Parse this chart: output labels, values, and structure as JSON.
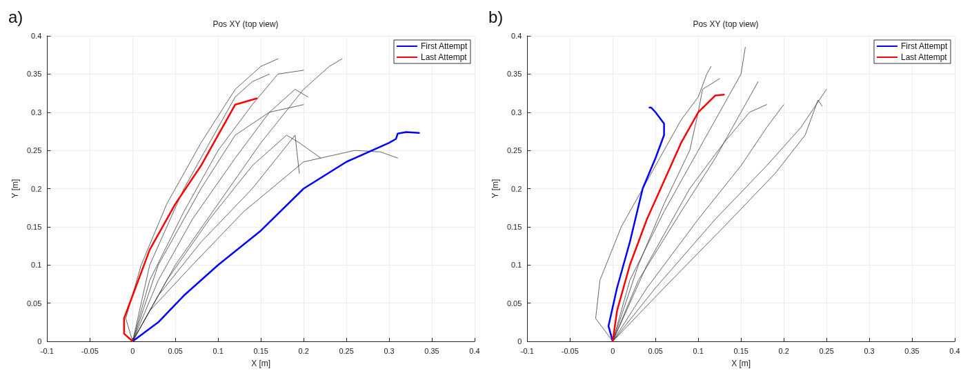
{
  "chart_data": [
    {
      "type": "line",
      "title": "Pos XY (top view)",
      "xlabel": "X [m]",
      "ylabel": "Y [m]",
      "annotations": [
        "a)"
      ],
      "xlim": [
        -0.1,
        0.4
      ],
      "xticks": [
        -0.1,
        -0.05,
        0,
        0.05,
        0.1,
        0.15,
        0.2,
        0.25,
        0.3,
        0.35,
        0.4
      ],
      "ylim": [
        0,
        0.4
      ],
      "yticks": [
        0,
        0.05,
        0.1,
        0.15,
        0.2,
        0.25,
        0.3,
        0.35,
        0.4
      ],
      "grid": true,
      "legend": "top right",
      "marker": "none",
      "line_style": "solid",
      "series": [
        {
          "color": "#333333",
          "x": [
            0,
            -0.008,
            0.01,
            0.04,
            0.08,
            0.12,
            0.15,
            0.17
          ],
          "values": [
            0,
            0.03,
            0.1,
            0.18,
            0.26,
            0.33,
            0.36,
            0.37
          ]
        },
        {
          "color": "#333333",
          "x": [
            0,
            0.02,
            0.06,
            0.1,
            0.14,
            0.17,
            0.2
          ],
          "values": [
            0,
            0.08,
            0.17,
            0.25,
            0.31,
            0.35,
            0.355
          ]
        },
        {
          "color": "#333333",
          "x": [
            0,
            0.03,
            0.07,
            0.12,
            0.16,
            0.19,
            0.205
          ],
          "values": [
            0,
            0.08,
            0.16,
            0.24,
            0.3,
            0.33,
            0.32
          ]
        },
        {
          "color": "#333333",
          "x": [
            0,
            0.04,
            0.09,
            0.14,
            0.18,
            0.195,
            0.22
          ],
          "values": [
            0,
            0.08,
            0.16,
            0.23,
            0.27,
            0.26,
            0.24
          ]
        },
        {
          "color": "#333333",
          "x": [
            0,
            0.02,
            0.07,
            0.13,
            0.2,
            0.26,
            0.29,
            0.31
          ],
          "values": [
            0,
            0.04,
            0.1,
            0.17,
            0.235,
            0.25,
            0.248,
            0.24
          ]
        },
        {
          "color": "#333333",
          "x": [
            0,
            0.03,
            0.08,
            0.14,
            0.19,
            0.195
          ],
          "values": [
            0,
            0.06,
            0.13,
            0.2,
            0.27,
            0.22
          ]
        },
        {
          "color": "#333333",
          "x": [
            0,
            0.05,
            0.1,
            0.15,
            0.2,
            0.23,
            0.245
          ],
          "values": [
            0,
            0.1,
            0.18,
            0.26,
            0.33,
            0.36,
            0.37
          ]
        },
        {
          "color": "#333333",
          "x": [
            0,
            0.02,
            0.06,
            0.1,
            0.12,
            0.14,
            0.16
          ],
          "values": [
            0,
            0.1,
            0.2,
            0.28,
            0.32,
            0.34,
            0.35
          ]
        },
        {
          "color": "#333333",
          "x": [
            0,
            0.03,
            0.08,
            0.12,
            0.16,
            0.2
          ],
          "values": [
            0,
            0.1,
            0.2,
            0.27,
            0.3,
            0.31
          ]
        },
        {
          "name": "First Attempt",
          "color": "#0000ff",
          "x": [
            0,
            0.03,
            0.06,
            0.1,
            0.15,
            0.2,
            0.25,
            0.3,
            0.308,
            0.31,
            0.32,
            0.335
          ],
          "values": [
            0,
            0.025,
            0.06,
            0.1,
            0.145,
            0.2,
            0.235,
            0.26,
            0.265,
            0.272,
            0.274,
            0.273
          ]
        },
        {
          "name": "Last Attempt",
          "color": "#ff0000",
          "x": [
            0,
            -0.01,
            -0.01,
            0,
            0.02,
            0.05,
            0.08,
            0.1,
            0.11,
            0.12,
            0.145
          ],
          "values": [
            0,
            0.01,
            0.03,
            0.06,
            0.12,
            0.18,
            0.23,
            0.27,
            0.29,
            0.31,
            0.318
          ]
        }
      ]
    },
    {
      "type": "line",
      "title": "Pos XY (top view)",
      "xlabel": "X [m]",
      "ylabel": "Y [m]",
      "annotations": [
        "b)"
      ],
      "xlim": [
        -0.1,
        0.4
      ],
      "xticks": [
        -0.1,
        -0.05,
        0,
        0.05,
        0.1,
        0.15,
        0.2,
        0.25,
        0.3,
        0.35,
        0.4
      ],
      "ylim": [
        0,
        0.4
      ],
      "yticks": [
        0,
        0.05,
        0.1,
        0.15,
        0.2,
        0.25,
        0.3,
        0.35,
        0.4
      ],
      "grid": true,
      "legend": "top right",
      "marker": "none",
      "line_style": "solid",
      "series": [
        {
          "color": "#333333",
          "x": [
            0,
            -0.02,
            -0.015,
            0.01,
            0.05,
            0.08,
            0.1,
            0.11,
            0.115
          ],
          "values": [
            0,
            0.03,
            0.08,
            0.15,
            0.23,
            0.29,
            0.32,
            0.35,
            0.36
          ]
        },
        {
          "color": "#333333",
          "x": [
            0,
            0.02,
            0.06,
            0.1,
            0.13,
            0.15,
            0.155
          ],
          "values": [
            0,
            0.08,
            0.17,
            0.25,
            0.31,
            0.35,
            0.385
          ]
        },
        {
          "color": "#333333",
          "x": [
            0,
            0.03,
            0.08,
            0.12,
            0.15,
            0.17
          ],
          "values": [
            0,
            0.08,
            0.17,
            0.24,
            0.3,
            0.34
          ]
        },
        {
          "color": "#333333",
          "x": [
            0,
            0.04,
            0.1,
            0.15,
            0.18,
            0.2
          ],
          "values": [
            0,
            0.07,
            0.16,
            0.23,
            0.28,
            0.31
          ]
        },
        {
          "color": "#333333",
          "x": [
            0,
            0.05,
            0.12,
            0.18,
            0.22,
            0.25
          ],
          "values": [
            0,
            0.07,
            0.16,
            0.23,
            0.28,
            0.33
          ]
        },
        {
          "color": "#333333",
          "x": [
            0,
            0.06,
            0.13,
            0.19,
            0.225,
            0.24,
            0.245
          ],
          "values": [
            0,
            0.07,
            0.15,
            0.22,
            0.27,
            0.316,
            0.308
          ]
        },
        {
          "color": "#333333",
          "x": [
            0,
            0.03,
            0.06,
            0.09,
            0.1,
            0.105,
            0.125
          ],
          "values": [
            0,
            0.1,
            0.18,
            0.25,
            0.3,
            0.33,
            0.344
          ]
        },
        {
          "color": "#333333",
          "x": [
            0,
            0.04,
            0.09,
            0.13,
            0.16,
            0.18
          ],
          "values": [
            0,
            0.1,
            0.2,
            0.26,
            0.3,
            0.31
          ]
        },
        {
          "name": "First Attempt",
          "color": "#0000ff",
          "x": [
            0,
            -0.005,
            0.005,
            0.02,
            0.035,
            0.05,
            0.06,
            0.06,
            0.05,
            0.045,
            0.043
          ],
          "values": [
            0,
            0.02,
            0.07,
            0.13,
            0.2,
            0.24,
            0.27,
            0.285,
            0.3,
            0.306,
            0.306
          ]
        },
        {
          "name": "Last Attempt",
          "color": "#ff0000",
          "x": [
            0,
            0.005,
            0.02,
            0.04,
            0.06,
            0.08,
            0.1,
            0.12,
            0.13
          ],
          "values": [
            0,
            0.04,
            0.1,
            0.16,
            0.21,
            0.26,
            0.3,
            0.322,
            0.323
          ]
        }
      ]
    }
  ]
}
